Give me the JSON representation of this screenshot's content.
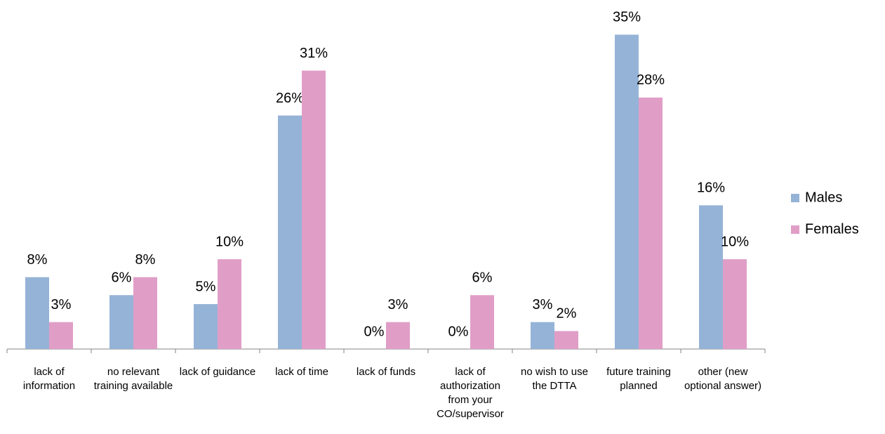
{
  "chart_data": {
    "type": "bar",
    "categories": [
      "lack of information",
      "no relevant training available",
      "lack of guidance",
      "lack of time",
      "lack of funds",
      "lack of authorization from your CO/supervisor",
      "no wish to use the DTTA",
      "future training planned",
      "other (new optional answer)"
    ],
    "series": [
      {
        "name": "Males",
        "color": "#95b3d7",
        "values": [
          8,
          6,
          5,
          26,
          0,
          0,
          3,
          35,
          16
        ],
        "value_labels": [
          "8%",
          "6%",
          "5%",
          "26%",
          "0%",
          "0%",
          "3%",
          "35%",
          "16%"
        ]
      },
      {
        "name": "Females",
        "color": "#e09ec7",
        "values": [
          3,
          8,
          10,
          31,
          3,
          6,
          2,
          28,
          10
        ],
        "value_labels": [
          "3%",
          "8%",
          "10%",
          "31%",
          "3%",
          "6%",
          "2%",
          "28%",
          "10%"
        ]
      }
    ],
    "ylim": [
      0,
      38
    ],
    "legend": "right"
  }
}
